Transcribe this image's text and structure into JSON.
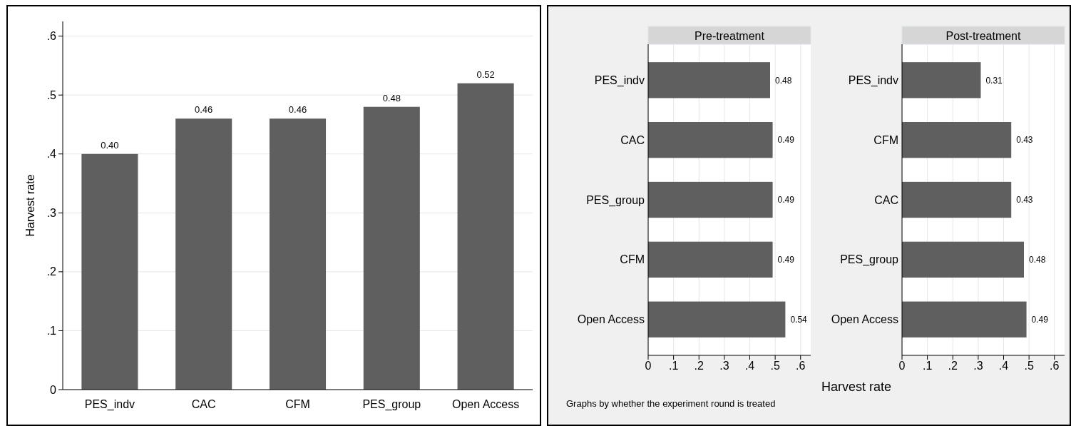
{
  "chart_data": [
    {
      "type": "bar",
      "ylabel": "Harvest rate",
      "categories": [
        "PES_indv",
        "CAC",
        "CFM",
        "PES_group",
        "Open Access"
      ],
      "values": [
        0.4,
        0.46,
        0.46,
        0.48,
        0.52
      ],
      "value_labels": [
        "0.40",
        "0.46",
        "0.46",
        "0.48",
        "0.52"
      ],
      "color": "#5f5f5f",
      "ylim": [
        0,
        0.625
      ],
      "yticks": [
        {
          "value": 0,
          "label": "0"
        },
        {
          "value": 0.1,
          "label": ".1"
        },
        {
          "value": 0.2,
          "label": ".2"
        },
        {
          "value": 0.3,
          "label": ".3"
        },
        {
          "value": 0.4,
          "label": ".4"
        },
        {
          "value": 0.5,
          "label": ".5"
        },
        {
          "value": 0.6,
          "label": ".6"
        }
      ],
      "grid": "y"
    },
    {
      "type": "bar",
      "orientation": "horizontal",
      "title": "Pre-treatment",
      "xlabel": "Harvest rate",
      "annotations": [
        "Graphs by whether the experiment round is treated"
      ],
      "categories": [
        "PES_indv",
        "CAC",
        "PES_group",
        "CFM",
        "Open Access"
      ],
      "values": [
        0.48,
        0.49,
        0.49,
        0.49,
        0.54
      ],
      "value_labels": [
        "0.48",
        "0.49",
        "0.49",
        "0.49",
        "0.54"
      ],
      "color": "#5f5f5f",
      "xlim": [
        0,
        0.64
      ],
      "xticks": [
        {
          "value": 0,
          "label": "0"
        },
        {
          "value": 0.1,
          "label": ".1"
        },
        {
          "value": 0.2,
          "label": ".2"
        },
        {
          "value": 0.3,
          "label": ".3"
        },
        {
          "value": 0.4,
          "label": ".4"
        },
        {
          "value": 0.5,
          "label": ".5"
        },
        {
          "value": 0.6,
          "label": ".6"
        }
      ],
      "grid": "x"
    },
    {
      "type": "bar",
      "orientation": "horizontal",
      "title": "Post-treatment",
      "categories": [
        "PES_indv",
        "CFM",
        "CAC",
        "PES_group",
        "Open Access"
      ],
      "values": [
        0.31,
        0.43,
        0.43,
        0.48,
        0.49
      ],
      "value_labels": [
        "0.31",
        "0.43",
        "0.43",
        "0.48",
        "0.49"
      ],
      "color": "#5f5f5f",
      "xlim": [
        0,
        0.64
      ],
      "xticks": [
        {
          "value": 0,
          "label": "0"
        },
        {
          "value": 0.1,
          "label": ".1"
        },
        {
          "value": 0.2,
          "label": ".2"
        },
        {
          "value": 0.3,
          "label": ".3"
        },
        {
          "value": 0.4,
          "label": ".4"
        },
        {
          "value": 0.5,
          "label": ".5"
        },
        {
          "value": 0.6,
          "label": ".6"
        }
      ],
      "grid": "x"
    }
  ]
}
